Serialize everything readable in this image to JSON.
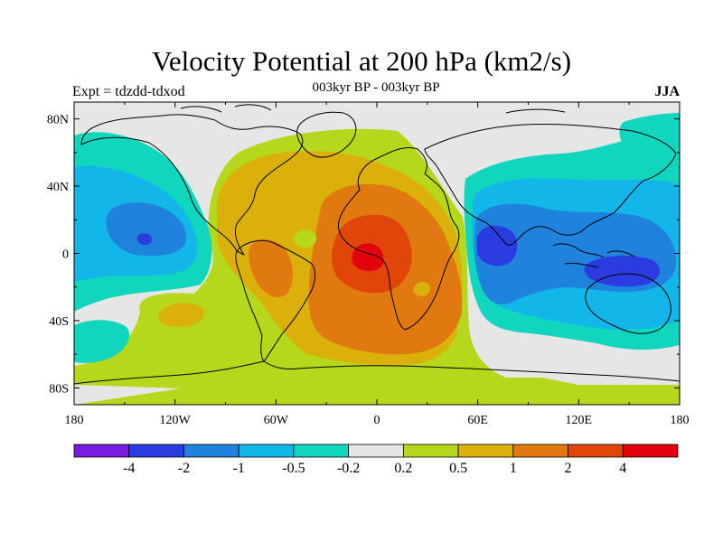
{
  "title": "Velocity Potential at 200 hPa (km2/s)",
  "subtitle": "003kyr BP - 003kyr BP",
  "left_string": "Expt = tdzdd-tdxod",
  "right_string": "JJA",
  "map": {
    "projection": "cylindrical-equidistant",
    "lon_range": [
      -180,
      180
    ],
    "lat_range": [
      -90,
      90
    ],
    "x_ticks": [
      {
        "lon": -180,
        "label": "180"
      },
      {
        "lon": -120,
        "label": "120W"
      },
      {
        "lon": -60,
        "label": "60W"
      },
      {
        "lon": 0,
        "label": "0"
      },
      {
        "lon": 60,
        "label": "60E"
      },
      {
        "lon": 120,
        "label": "120E"
      },
      {
        "lon": 180,
        "label": "180"
      }
    ],
    "y_ticks": [
      {
        "lat": 80,
        "label": "80N"
      },
      {
        "lat": 40,
        "label": "40N"
      },
      {
        "lat": 0,
        "label": "0"
      },
      {
        "lat": -40,
        "label": "40S"
      },
      {
        "lat": -80,
        "label": "80S"
      }
    ]
  },
  "colorbar": {
    "colors": [
      "#7a1be0",
      "#2a3ce0",
      "#1f82dc",
      "#13b6e8",
      "#0fd6bc",
      "#e6e6e6",
      "#b6d81c",
      "#dcb00a",
      "#e07a10",
      "#e0460a",
      "#e2000c"
    ],
    "labels": [
      "-4",
      "-2",
      "-1",
      "-0.5",
      "-0.2",
      "0.2",
      "0.5",
      "1",
      "2",
      "4"
    ]
  },
  "fill_colors": {
    "neutral": "#e6e6e6",
    "pos1": "#b6d81c",
    "pos2": "#dcb00a",
    "pos3": "#e07a10",
    "pos4": "#e0460a",
    "pos5": "#e2000c",
    "neg1": "#0fd6bc",
    "neg2": "#13b6e8",
    "neg3": "#1f82dc",
    "neg4": "#2a3ce0",
    "neg5": "#7a1be0"
  }
}
